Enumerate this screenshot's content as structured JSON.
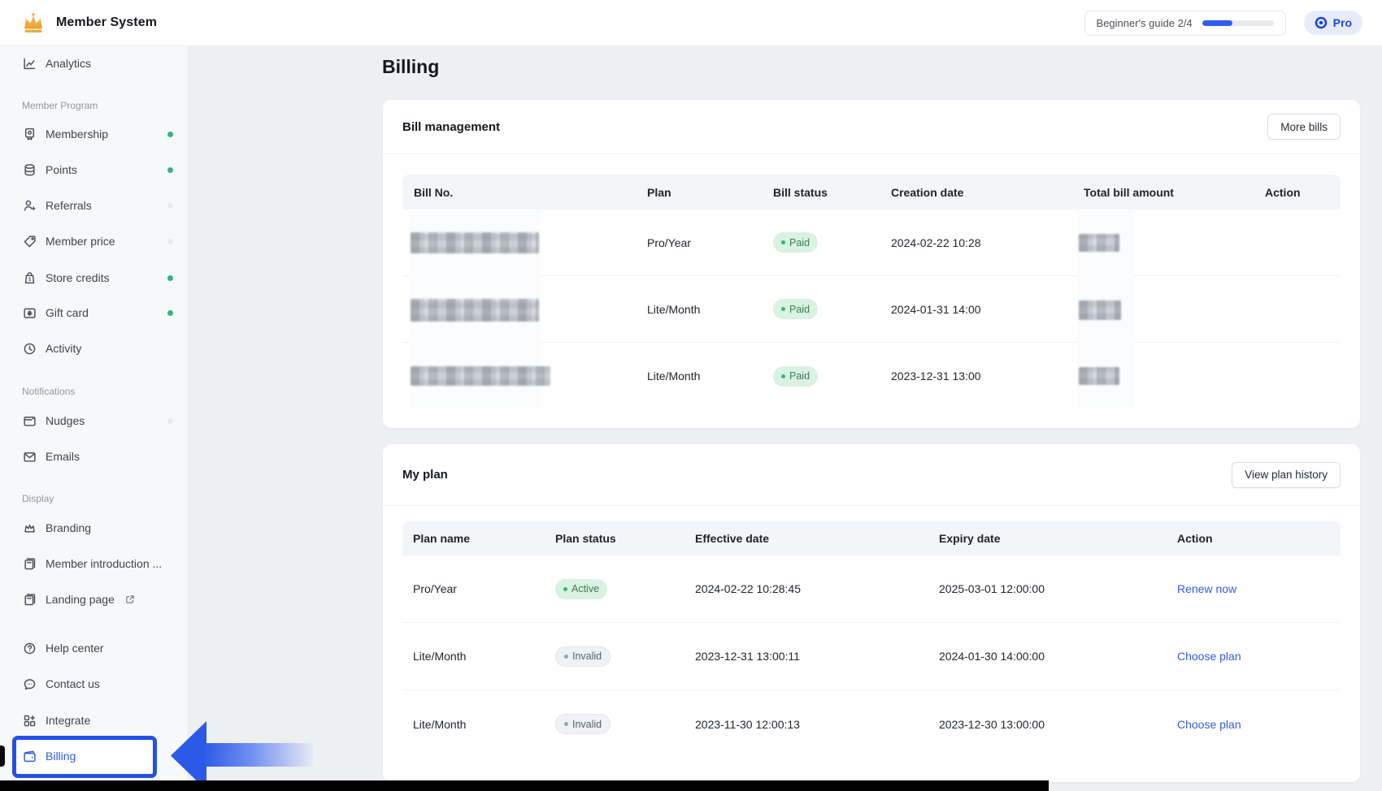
{
  "header": {
    "app_name": "Member System",
    "beginners_guide": {
      "label": "Beginner's guide 2/4",
      "progress_percent": 42
    },
    "pro_badge": "Pro"
  },
  "sidebar": {
    "analytics": {
      "label": "Analytics"
    },
    "sections": [
      {
        "label": "Member Program",
        "items": [
          {
            "label": "Membership",
            "dot": "green"
          },
          {
            "label": "Points",
            "dot": "green"
          },
          {
            "label": "Referrals",
            "dot": "gray"
          },
          {
            "label": "Member price",
            "dot": "gray"
          },
          {
            "label": "Store credits",
            "dot": "green"
          },
          {
            "label": "Gift card",
            "dot": "green"
          },
          {
            "label": "Activity",
            "dot": "none"
          }
        ]
      },
      {
        "label": "Notifications",
        "items": [
          {
            "label": "Nudges",
            "dot": "gray"
          },
          {
            "label": "Emails",
            "dot": "none"
          }
        ]
      },
      {
        "label": "Display",
        "items": [
          {
            "label": "Branding",
            "dot": "none"
          },
          {
            "label": "Member introduction ...",
            "dot": "none"
          },
          {
            "label": "Landing page",
            "dot": "none",
            "external": true
          }
        ]
      }
    ],
    "footer_items": [
      {
        "label": "Help center"
      },
      {
        "label": "Contact us"
      },
      {
        "label": "Integrate"
      },
      {
        "label": "Billing",
        "active": true
      }
    ]
  },
  "page": {
    "title": "Billing"
  },
  "bill_management": {
    "title": "Bill management",
    "more_button": "More bills",
    "columns": [
      "Bill No.",
      "Plan",
      "Bill status",
      "Creation date",
      "Total bill amount",
      "Action"
    ],
    "rows": [
      {
        "bill_no_redacted": true,
        "plan": "Pro/Year",
        "status": "Paid",
        "creation_date": "2024-02-22 10:28",
        "amount_redacted": true
      },
      {
        "bill_no_redacted": true,
        "plan": "Lite/Month",
        "status": "Paid",
        "creation_date": "2024-01-31 14:00",
        "amount_redacted": true
      },
      {
        "bill_no_redacted": true,
        "plan": "Lite/Month",
        "status": "Paid",
        "creation_date": "2023-12-31 13:00",
        "amount_redacted": true
      }
    ]
  },
  "my_plan": {
    "title": "My plan",
    "history_button": "View plan history",
    "columns": [
      "Plan name",
      "Plan status",
      "Effective date",
      "Expiry date",
      "Action"
    ],
    "rows": [
      {
        "plan_name": "Pro/Year",
        "status": "Active",
        "effective_date": "2024-02-22 10:28:45",
        "expiry_date": "2025-03-01 12:00:00",
        "action": "Renew now"
      },
      {
        "plan_name": "Lite/Month",
        "status": "Invalid",
        "effective_date": "2023-12-31 13:00:11",
        "expiry_date": "2024-01-30 14:00:00",
        "action": "Choose plan"
      },
      {
        "plan_name": "Lite/Month",
        "status": "Invalid",
        "effective_date": "2023-11-30 12:00:13",
        "expiry_date": "2023-12-30 13:00:00",
        "action": "Choose plan"
      }
    ]
  },
  "colors": {
    "accent_blue": "#2f5ce5",
    "annotation_blue": "#2351e8",
    "green_dot": "#2eb77d",
    "paid_pill_bg": "#d9f2e2",
    "invalid_pill_bg": "#f1f2f5",
    "main_bg": "#edeff2",
    "sidebar_bg": "#f7f8fa"
  }
}
